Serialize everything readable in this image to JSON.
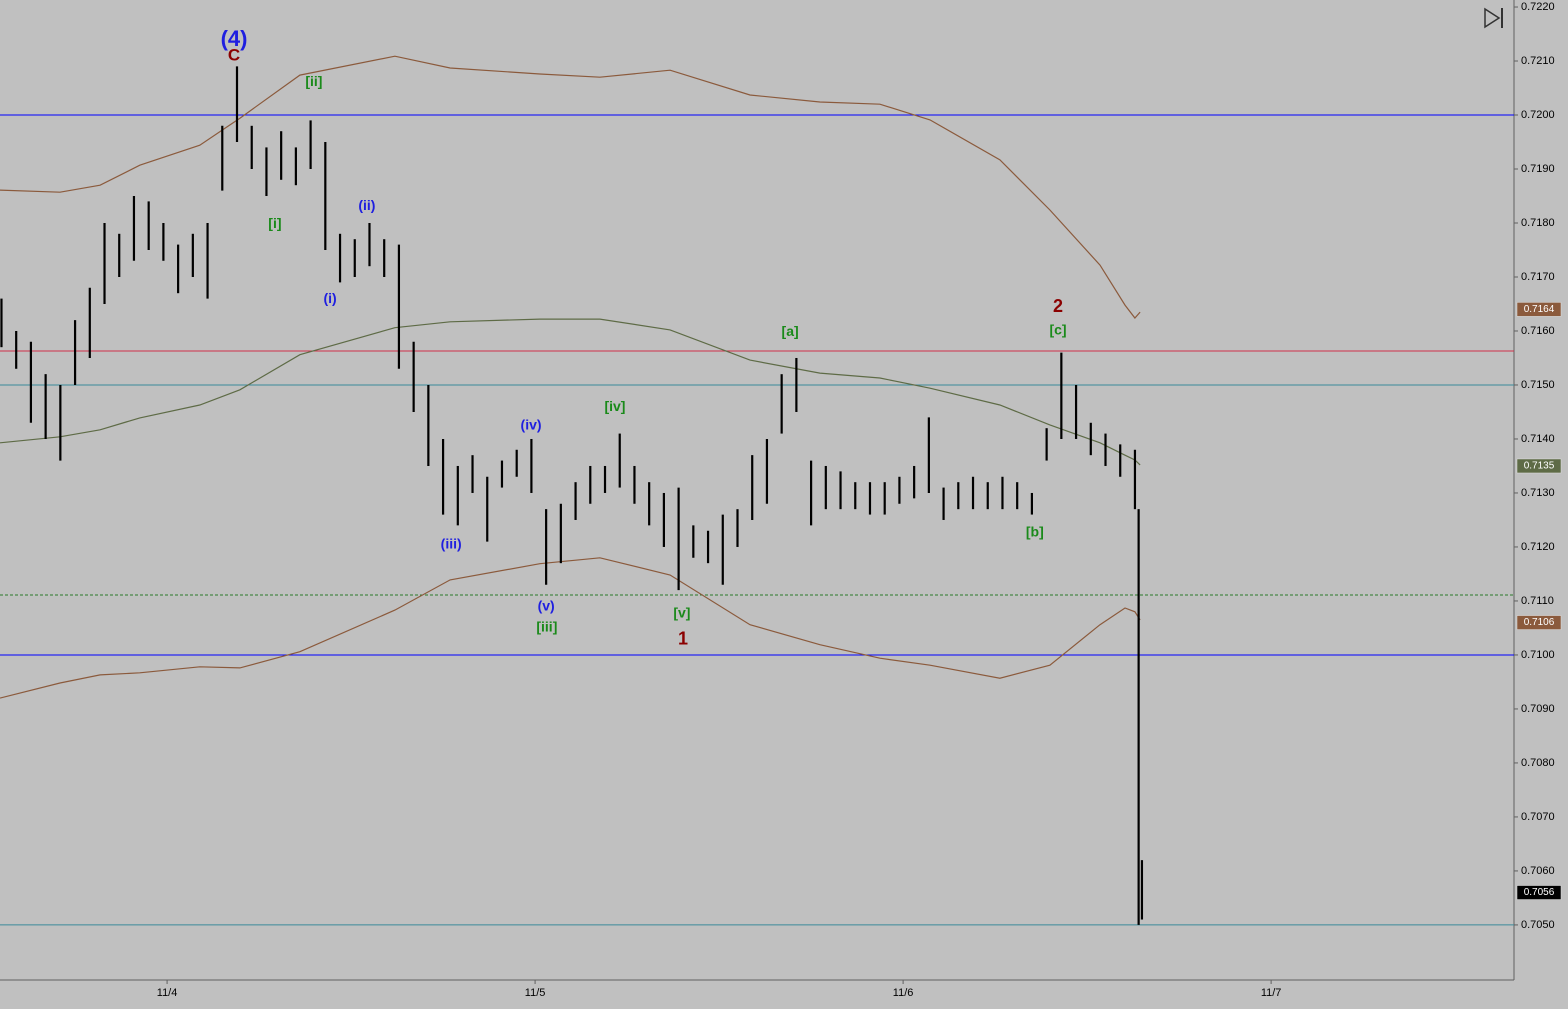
{
  "chart_data": {
    "type": "ohlc",
    "xlim": [
      3.546,
      7.66
    ],
    "ylim": [
      0.70398,
      0.72213
    ],
    "xticks": [
      {
        "value": 4,
        "label": "11/4"
      },
      {
        "value": 5,
        "label": "11/5"
      },
      {
        "value": 6,
        "label": "11/6"
      },
      {
        "value": 7,
        "label": "11/7"
      }
    ],
    "yticks": [
      {
        "value": 0.705,
        "label": "0.7050"
      },
      {
        "value": 0.706,
        "label": "0.7060"
      },
      {
        "value": 0.707,
        "label": "0.7070"
      },
      {
        "value": 0.708,
        "label": "0.7080"
      },
      {
        "value": 0.709,
        "label": "0.7090"
      },
      {
        "value": 0.71,
        "label": "0.7100"
      },
      {
        "value": 0.711,
        "label": "0.7110"
      },
      {
        "value": 0.712,
        "label": "0.7120"
      },
      {
        "value": 0.713,
        "label": "0.7130"
      },
      {
        "value": 0.714,
        "label": "0.7140"
      },
      {
        "value": 0.715,
        "label": "0.7150"
      },
      {
        "value": 0.716,
        "label": "0.7160"
      },
      {
        "value": 0.717,
        "label": "0.7170"
      },
      {
        "value": 0.718,
        "label": "0.7180"
      },
      {
        "value": 0.719,
        "label": "0.7190"
      },
      {
        "value": 0.72,
        "label": "0.7200"
      },
      {
        "value": 0.721,
        "label": "0.7210"
      },
      {
        "value": 0.722,
        "label": "0.7220"
      }
    ],
    "bars": {
      "color": "#000000",
      "x": [
        3.55,
        3.59,
        3.63,
        3.67,
        3.71,
        3.75,
        3.79,
        3.83,
        3.87,
        3.91,
        3.95,
        3.99,
        4.03,
        4.07,
        4.11,
        4.15,
        4.19,
        4.23,
        4.27,
        4.31,
        4.35,
        4.39,
        4.43,
        4.47,
        4.51,
        4.55,
        4.59,
        4.63,
        4.67,
        4.71,
        4.75,
        4.79,
        4.83,
        4.87,
        4.91,
        4.95,
        4.99,
        5.03,
        5.07,
        5.11,
        5.15,
        5.19,
        5.23,
        5.27,
        5.31,
        5.35,
        5.39,
        5.43,
        5.47,
        5.51,
        5.55,
        5.59,
        5.63,
        5.67,
        5.71,
        5.75,
        5.79,
        5.83,
        5.87,
        5.91,
        5.95,
        5.99,
        6.03,
        6.07,
        6.11,
        6.15,
        6.19,
        6.23,
        6.27,
        6.31,
        6.35,
        6.39,
        6.43,
        6.47,
        6.51,
        6.55,
        6.59,
        6.63,
        6.64,
        6.649
      ],
      "high": [
        0.7166,
        0.716,
        0.7158,
        0.7152,
        0.715,
        0.7162,
        0.7168,
        0.718,
        0.7178,
        0.7185,
        0.7184,
        0.718,
        0.7176,
        0.7178,
        0.718,
        0.7198,
        0.7209,
        0.7198,
        0.7194,
        0.7197,
        0.7194,
        0.7199,
        0.7195,
        0.7178,
        0.7177,
        0.718,
        0.7177,
        0.7176,
        0.7158,
        0.715,
        0.714,
        0.7135,
        0.7137,
        0.7133,
        0.7136,
        0.7138,
        0.714,
        0.7127,
        0.7128,
        0.7132,
        0.7135,
        0.7135,
        0.7141,
        0.7135,
        0.7132,
        0.713,
        0.7131,
        0.7124,
        0.7123,
        0.7126,
        0.7127,
        0.7137,
        0.714,
        0.7152,
        0.7155,
        0.7136,
        0.7135,
        0.7134,
        0.7132,
        0.7132,
        0.7132,
        0.7133,
        0.7135,
        0.7144,
        0.7131,
        0.7132,
        0.7133,
        0.7132,
        0.7133,
        0.7132,
        0.713,
        0.7142,
        0.7156,
        0.715,
        0.7143,
        0.7141,
        0.7139,
        0.7138,
        0.7127,
        0.7062
      ],
      "low": [
        0.7157,
        0.7153,
        0.7143,
        0.714,
        0.7136,
        0.715,
        0.7155,
        0.7165,
        0.717,
        0.7173,
        0.7175,
        0.7173,
        0.7167,
        0.717,
        0.7166,
        0.7186,
        0.7195,
        0.719,
        0.7185,
        0.7188,
        0.7187,
        0.719,
        0.7175,
        0.7169,
        0.717,
        0.7172,
        0.717,
        0.7153,
        0.7145,
        0.7135,
        0.7126,
        0.7124,
        0.713,
        0.7121,
        0.7131,
        0.7133,
        0.713,
        0.7113,
        0.7117,
        0.7125,
        0.7128,
        0.713,
        0.7131,
        0.7128,
        0.7124,
        0.712,
        0.7112,
        0.7118,
        0.7117,
        0.7113,
        0.712,
        0.7125,
        0.7128,
        0.7141,
        0.7145,
        0.7124,
        0.7127,
        0.7127,
        0.7127,
        0.7126,
        0.7126,
        0.7128,
        0.7129,
        0.713,
        0.7125,
        0.7127,
        0.7127,
        0.7127,
        0.7127,
        0.7127,
        0.7126,
        0.7136,
        0.714,
        0.714,
        0.7137,
        0.7135,
        0.7133,
        0.7127,
        0.705,
        0.7051
      ]
    },
    "bands_x": [
      3.546,
      3.709,
      3.818,
      3.926,
      4.089,
      4.198,
      4.361,
      4.619,
      4.769,
      5.013,
      5.176,
      5.367,
      5.584,
      5.774,
      5.937,
      6.073,
      6.263,
      6.399,
      6.535,
      6.603,
      6.63,
      6.644
    ],
    "bands": [
      {
        "color": "#8b5a3c",
        "values": [
          0.71861,
          0.71857,
          0.7187,
          0.71907,
          0.71944,
          0.71994,
          0.72074,
          0.72109,
          0.72087,
          0.72076,
          0.7207,
          0.72083,
          0.72037,
          0.72024,
          0.7202,
          0.71991,
          0.71917,
          0.71824,
          0.71722,
          0.71648,
          0.71624,
          0.71635
        ]
      },
      {
        "color": "#5e6b46",
        "values": [
          0.71393,
          0.71404,
          0.71417,
          0.71439,
          0.71463,
          0.71491,
          0.71556,
          0.71606,
          0.71617,
          0.71622,
          0.71622,
          0.71602,
          0.71546,
          0.71522,
          0.71513,
          0.71494,
          0.71463,
          0.71426,
          0.71393,
          0.7137,
          0.71361,
          0.71352
        ]
      },
      {
        "color": "#8b5a3c",
        "values": [
          0.7092,
          0.70948,
          0.70963,
          0.70967,
          0.70978,
          0.70976,
          0.71006,
          0.71083,
          0.71139,
          0.71169,
          0.7118,
          0.71148,
          0.71056,
          0.71019,
          0.70994,
          0.70981,
          0.70957,
          0.70981,
          0.71056,
          0.71087,
          0.7108,
          0.71065
        ]
      }
    ],
    "hlines": [
      {
        "value": 0.72,
        "color": "#0000ff"
      },
      {
        "value": 0.71563,
        "color": "#d0304a"
      },
      {
        "value": 0.715,
        "color": "#3a8a9a"
      },
      {
        "value": 0.71111,
        "color": "#2a7a2a",
        "dashed": true
      },
      {
        "value": 0.71,
        "color": "#0000ff"
      },
      {
        "value": 0.705,
        "color": "#3a8a9a"
      }
    ],
    "price_tags": [
      {
        "value": 0.7164,
        "color": "#8b5a3c"
      },
      {
        "value": 0.7135,
        "color": "#5e6b46"
      },
      {
        "value": 0.7106,
        "color": "#8b5a3c"
      },
      {
        "value": 0.7056,
        "color": "#000000"
      }
    ],
    "annotations": [
      {
        "text": "(4)",
        "x": 4.182,
        "y": 0.72139,
        "color": "#1f1fe0",
        "size": 22
      },
      {
        "text": "C",
        "x": 4.182,
        "y": 0.72109,
        "color": "#8b0000",
        "size": 17
      },
      {
        "text": "[ii]",
        "x": 4.399,
        "y": 0.72061,
        "color": "#1a8a1a",
        "size": 14
      },
      {
        "text": "[i]",
        "x": 4.293,
        "y": 0.71798,
        "color": "#1a8a1a",
        "size": 14
      },
      {
        "text": "(ii)",
        "x": 4.543,
        "y": 0.71831,
        "color": "#1f1fe0",
        "size": 14
      },
      {
        "text": "(i)",
        "x": 4.443,
        "y": 0.71659,
        "color": "#1f1fe0",
        "size": 14
      },
      {
        "text": "(iii)",
        "x": 4.772,
        "y": 0.71204,
        "color": "#1f1fe0",
        "size": 14
      },
      {
        "text": "(iv)",
        "x": 4.989,
        "y": 0.71424,
        "color": "#1f1fe0",
        "size": 14
      },
      {
        "text": "[iv]",
        "x": 5.217,
        "y": 0.71459,
        "color": "#1a8a1a",
        "size": 14
      },
      {
        "text": "(v)",
        "x": 5.03,
        "y": 0.71089,
        "color": "#1f1fe0",
        "size": 14
      },
      {
        "text": "[iii]",
        "x": 5.032,
        "y": 0.7105,
        "color": "#1a8a1a",
        "size": 14
      },
      {
        "text": "[v]",
        "x": 5.399,
        "y": 0.71076,
        "color": "#1a8a1a",
        "size": 14
      },
      {
        "text": "1",
        "x": 5.402,
        "y": 0.71028,
        "color": "#8b0000",
        "size": 18
      },
      {
        "text": "[a]",
        "x": 5.693,
        "y": 0.71598,
        "color": "#1a8a1a",
        "size": 14
      },
      {
        "text": "2",
        "x": 6.421,
        "y": 0.71644,
        "color": "#8b0000",
        "size": 18
      },
      {
        "text": "[c]",
        "x": 6.421,
        "y": 0.716,
        "color": "#1a8a1a",
        "size": 14
      },
      {
        "text": "[b]",
        "x": 6.358,
        "y": 0.71226,
        "color": "#1a8a1a",
        "size": 14
      }
    ]
  }
}
